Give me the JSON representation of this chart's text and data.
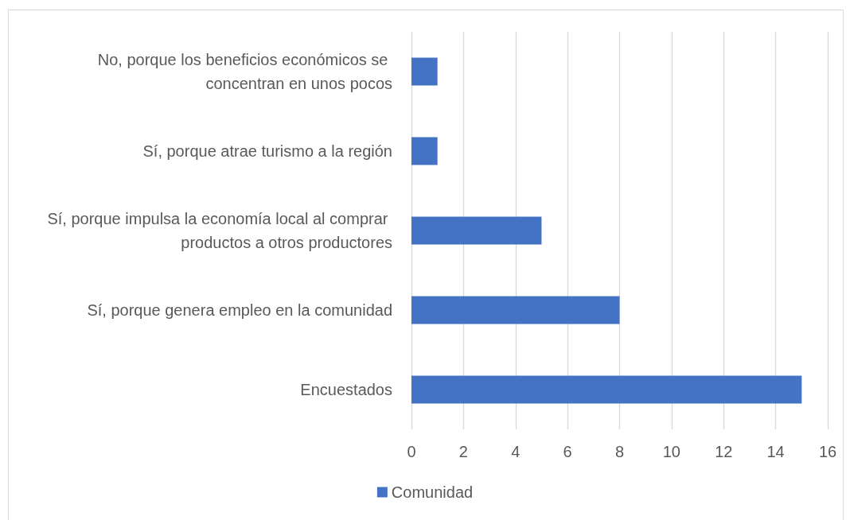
{
  "chart_data": {
    "type": "bar",
    "orientation": "horizontal",
    "categories": [
      "No, porque los beneficios económicos se concentran en unos pocos",
      "Sí, porque atrae turismo a la región",
      "Sí, porque impulsa la economía local al comprar productos a otros productores",
      "Sí, porque genera empleo en la comunidad",
      "Encuestados"
    ],
    "series": [
      {
        "name": "Comunidad",
        "color": "#4472c4",
        "values": [
          1,
          1,
          5,
          8,
          15
        ]
      }
    ],
    "xlim": [
      0,
      16
    ],
    "xticks": [
      0,
      2,
      4,
      6,
      8,
      10,
      12,
      14,
      16
    ],
    "grid": "x",
    "legend": "bottom"
  }
}
